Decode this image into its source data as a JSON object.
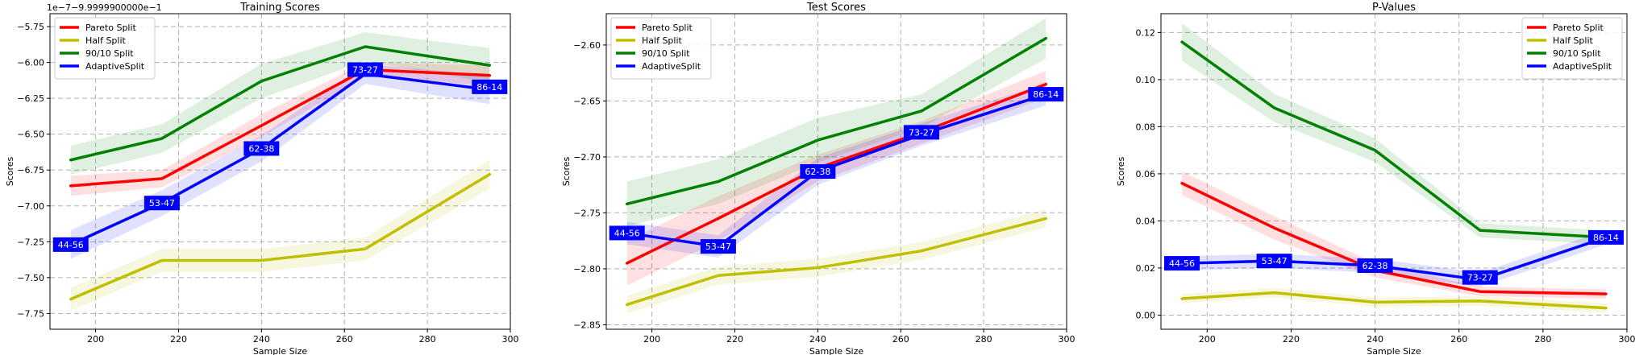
{
  "colors": {
    "pareto": "#ff0000",
    "half": "#bfbf00",
    "ninety": "#008000",
    "adaptive": "#0000ff",
    "grid": "#b0b0b0",
    "label_box": "#0000ff",
    "label_text": "#ffffff"
  },
  "chart_data": [
    {
      "type": "line",
      "title": "Training Scores",
      "xlabel": "Sample Size",
      "ylabel": "Scores",
      "offset_text": "1e−7−9.9999900000e−1",
      "x": [
        194,
        216,
        240,
        265,
        295
      ],
      "xlim": [
        189,
        300
      ],
      "ylim": [
        -7.86,
        -5.66
      ],
      "xticks": [
        200,
        220,
        240,
        260,
        280,
        300
      ],
      "yticks": [
        -7.75,
        -7.5,
        -7.25,
        -7.0,
        -6.75,
        -6.5,
        -6.25,
        -6.0,
        -5.75
      ],
      "ytick_labels": [
        "−7.75",
        "−7.50",
        "−7.25",
        "−7.00",
        "−6.75",
        "−6.50",
        "−6.25",
        "−6.00",
        "−5.75"
      ],
      "grid": true,
      "legend_position": "upper-left",
      "series": [
        {
          "name": "Pareto Split",
          "color_key": "pareto",
          "values": [
            -6.86,
            -6.81,
            -6.44,
            -6.05,
            -6.09
          ],
          "band": [
            0.07,
            0.06,
            0.08,
            0.05,
            0.07
          ]
        },
        {
          "name": "Half Split",
          "color_key": "half",
          "values": [
            -7.65,
            -7.38,
            -7.38,
            -7.3,
            -6.78
          ],
          "band": [
            0.08,
            0.08,
            0.08,
            0.08,
            0.1
          ]
        },
        {
          "name": "90/10 Split",
          "color_key": "ninety",
          "values": [
            -6.68,
            -6.53,
            -6.13,
            -5.89,
            -6.02
          ],
          "band": [
            0.1,
            0.1,
            0.12,
            0.1,
            0.12
          ]
        },
        {
          "name": "AdaptiveSplit",
          "color_key": "adaptive",
          "values": [
            -7.27,
            -6.98,
            -6.6,
            -6.08,
            -6.19
          ],
          "band": [
            0.1,
            0.09,
            0.09,
            0.07,
            0.1
          ]
        }
      ],
      "annotations": [
        {
          "text": "44-56",
          "x": 194,
          "y": -7.27
        },
        {
          "text": "53-47",
          "x": 216,
          "y": -6.98
        },
        {
          "text": "62-38",
          "x": 240,
          "y": -6.6
        },
        {
          "text": "73-27",
          "x": 265,
          "y": -6.05
        },
        {
          "text": "86-14",
          "x": 295,
          "y": -6.17
        }
      ]
    },
    {
      "type": "line",
      "title": "Test Scores",
      "xlabel": "Sample Size",
      "ylabel": "Scores",
      "offset_text": "",
      "x": [
        194,
        216,
        240,
        265,
        295
      ],
      "xlim": [
        189,
        300
      ],
      "ylim": [
        -2.854,
        -2.572
      ],
      "xticks": [
        200,
        220,
        240,
        260,
        280,
        300
      ],
      "yticks": [
        -2.85,
        -2.8,
        -2.75,
        -2.7,
        -2.65,
        -2.6
      ],
      "ytick_labels": [
        "−2.85",
        "−2.80",
        "−2.75",
        "−2.70",
        "−2.65",
        "−2.60"
      ],
      "grid": true,
      "legend_position": "upper-left",
      "series": [
        {
          "name": "Pareto Split",
          "color_key": "pareto",
          "values": [
            -2.795,
            -2.755,
            -2.71,
            -2.678,
            -2.635
          ],
          "band": [
            0.02,
            0.02,
            0.012,
            0.01,
            0.012
          ]
        },
        {
          "name": "Half Split",
          "color_key": "half",
          "values": [
            -2.832,
            -2.806,
            -2.799,
            -2.784,
            -2.755
          ],
          "band": [
            0.008,
            0.008,
            0.008,
            0.008,
            0.008
          ]
        },
        {
          "name": "90/10 Split",
          "color_key": "ninety",
          "values": [
            -2.742,
            -2.722,
            -2.685,
            -2.659,
            -2.594
          ],
          "band": [
            0.02,
            0.02,
            0.02,
            0.015,
            0.018
          ]
        },
        {
          "name": "AdaptiveSplit",
          "color_key": "adaptive",
          "values": [
            -2.768,
            -2.78,
            -2.713,
            -2.68,
            -2.644
          ],
          "band": [
            0.01,
            0.01,
            0.012,
            0.01,
            0.01
          ]
        }
      ],
      "annotations": [
        {
          "text": "44-56",
          "x": 194,
          "y": -2.768
        },
        {
          "text": "53-47",
          "x": 216,
          "y": -2.78
        },
        {
          "text": "62-38",
          "x": 240,
          "y": -2.713
        },
        {
          "text": "73-27",
          "x": 265,
          "y": -2.678
        },
        {
          "text": "86-14",
          "x": 295,
          "y": -2.644
        }
      ]
    },
    {
      "type": "line",
      "title": "P-Values",
      "xlabel": "Sample Size",
      "ylabel": "Scores",
      "offset_text": "",
      "x": [
        194,
        216,
        240,
        265,
        295
      ],
      "xlim": [
        189,
        300
      ],
      "ylim": [
        -0.006,
        0.128
      ],
      "xticks": [
        200,
        220,
        240,
        260,
        280,
        300
      ],
      "yticks": [
        0.0,
        0.02,
        0.04,
        0.06,
        0.08,
        0.1,
        0.12
      ],
      "ytick_labels": [
        "0.00",
        "0.02",
        "0.04",
        "0.06",
        "0.08",
        "0.10",
        "0.12"
      ],
      "grid": true,
      "legend_position": "upper-right",
      "series": [
        {
          "name": "Pareto Split",
          "color_key": "pareto",
          "values": [
            0.056,
            0.037,
            0.019,
            0.01,
            0.009
          ],
          "band": [
            0.005,
            0.005,
            0.003,
            0.002,
            0.002
          ]
        },
        {
          "name": "Half Split",
          "color_key": "half",
          "values": [
            0.007,
            0.0095,
            0.0055,
            0.006,
            0.003
          ],
          "band": [
            0.002,
            0.002,
            0.002,
            0.002,
            0.002
          ]
        },
        {
          "name": "90/10 Split",
          "color_key": "ninety",
          "values": [
            0.116,
            0.088,
            0.07,
            0.036,
            0.033
          ],
          "band": [
            0.008,
            0.006,
            0.005,
            0.003,
            0.003
          ]
        },
        {
          "name": "AdaptiveSplit",
          "color_key": "adaptive",
          "values": [
            0.022,
            0.023,
            0.021,
            0.015,
            0.033
          ],
          "band": [
            0.003,
            0.003,
            0.003,
            0.003,
            0.003
          ]
        }
      ],
      "annotations": [
        {
          "text": "44-56",
          "x": 194,
          "y": 0.022
        },
        {
          "text": "53-47",
          "x": 216,
          "y": 0.023
        },
        {
          "text": "62-38",
          "x": 240,
          "y": 0.021
        },
        {
          "text": "73-27",
          "x": 265,
          "y": 0.016
        },
        {
          "text": "86-14",
          "x": 295,
          "y": 0.033
        }
      ]
    }
  ]
}
